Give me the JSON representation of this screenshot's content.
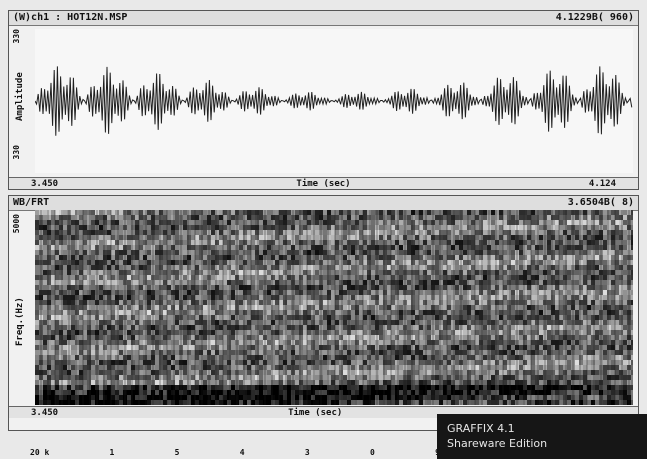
{
  "waveform": {
    "title_left": "(W)ch1 : HOT12N.MSP",
    "title_right": "4.1229B(    960)",
    "y_label": "Amplitude",
    "y_top": "330",
    "y_bottom": "330",
    "x_start": "3.450",
    "x_label": "Time (sec)",
    "x_end": "4.124"
  },
  "spectrogram": {
    "title_left": "WB/FRT",
    "title_right": "3.6504B(     8)",
    "y_label": "Freq.(Hz)",
    "y_top": "5000",
    "x_start": "3.450",
    "x_label": "Time (sec)"
  },
  "badge": {
    "line1": "GRAFFIX 4.1",
    "line2": "Shareware Edition"
  },
  "bottom_scale": [
    "20 k",
    "1",
    "5",
    "4",
    "3",
    "0",
    "9"
  ],
  "colors": {
    "background": "#e9e9e9",
    "trace": "#202020",
    "badge_bg": "#161616"
  }
}
